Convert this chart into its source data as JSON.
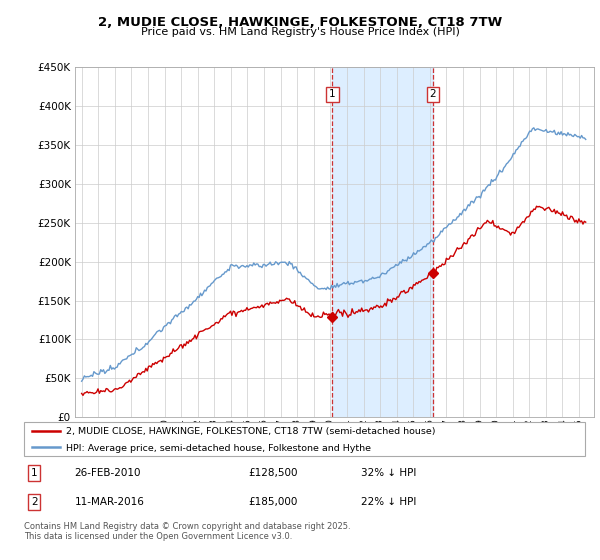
{
  "title": "2, MUDIE CLOSE, HAWKINGE, FOLKESTONE, CT18 7TW",
  "subtitle": "Price paid vs. HM Land Registry's House Price Index (HPI)",
  "ylim": [
    0,
    450000
  ],
  "yticks": [
    0,
    50000,
    100000,
    150000,
    200000,
    250000,
    300000,
    350000,
    400000,
    450000
  ],
  "sale1_date": "26-FEB-2010",
  "sale1_price": 128500,
  "sale1_year": 2010.12,
  "sale1_pct": "32% ↓ HPI",
  "sale2_date": "11-MAR-2016",
  "sale2_price": 185000,
  "sale2_year": 2016.19,
  "sale2_pct": "22% ↓ HPI",
  "legend_line1": "2, MUDIE CLOSE, HAWKINGE, FOLKESTONE, CT18 7TW (semi-detached house)",
  "legend_line2": "HPI: Average price, semi-detached house, Folkestone and Hythe",
  "footer": "Contains HM Land Registry data © Crown copyright and database right 2025.\nThis data is licensed under the Open Government Licence v3.0.",
  "red_color": "#cc0000",
  "blue_color": "#6699cc",
  "shade_color": "#ddeeff",
  "grid_color": "#cccccc",
  "xlim_left": 1994.6,
  "xlim_right": 2025.9
}
